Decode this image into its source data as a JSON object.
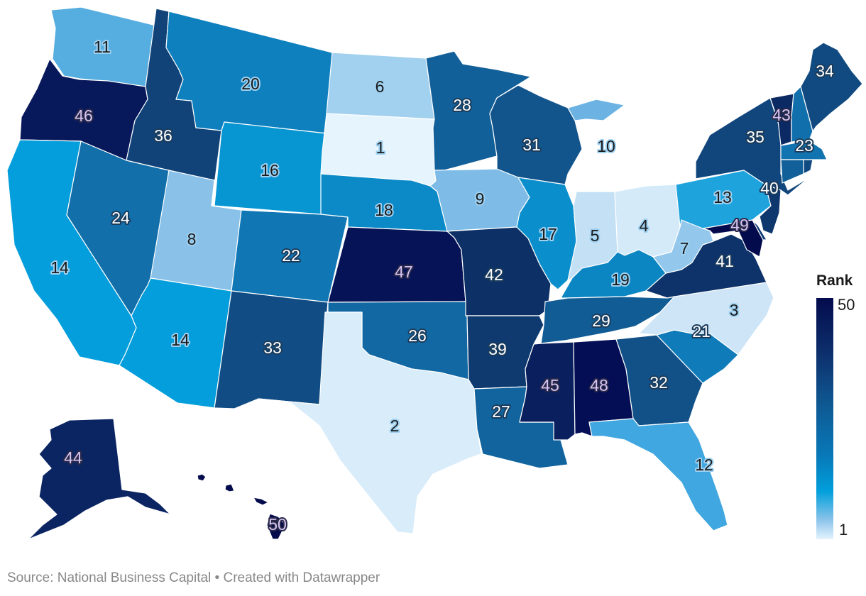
{
  "chart_data": {
    "type": "choropleth",
    "title": "",
    "legend": {
      "title": "Rank",
      "min_label": "1",
      "max_label": "50",
      "min": 1,
      "max": 50,
      "color_low": "#e4f3fd",
      "color_mid": "#009fdb",
      "color_high": "#030b4d",
      "position": "right"
    },
    "states": [
      {
        "code": "SD",
        "name": "South Dakota",
        "rank": 1
      },
      {
        "code": "TX",
        "name": "Texas",
        "rank": 2
      },
      {
        "code": "NC",
        "name": "North Carolina",
        "rank": 3
      },
      {
        "code": "OH",
        "name": "Ohio",
        "rank": 4
      },
      {
        "code": "IN",
        "name": "Indiana",
        "rank": 5
      },
      {
        "code": "ND",
        "name": "North Dakota",
        "rank": 6
      },
      {
        "code": "WV",
        "name": "West Virginia",
        "rank": 7
      },
      {
        "code": "UT",
        "name": "Utah",
        "rank": 8
      },
      {
        "code": "IA",
        "name": "Iowa",
        "rank": 9
      },
      {
        "code": "MI",
        "name": "Michigan",
        "rank": 10
      },
      {
        "code": "WA",
        "name": "Washington",
        "rank": 11
      },
      {
        "code": "FL",
        "name": "Florida",
        "rank": 12
      },
      {
        "code": "PA",
        "name": "Pennsylvania",
        "rank": 13
      },
      {
        "code": "CA",
        "name": "California",
        "rank": 14
      },
      {
        "code": "AZ",
        "name": "Arizona",
        "rank": 14
      },
      {
        "code": "WY",
        "name": "Wyoming",
        "rank": 16
      },
      {
        "code": "IL",
        "name": "Illinois",
        "rank": 17
      },
      {
        "code": "NE",
        "name": "Nebraska",
        "rank": 18
      },
      {
        "code": "KY",
        "name": "Kentucky",
        "rank": 19
      },
      {
        "code": "MT",
        "name": "Montana",
        "rank": 20
      },
      {
        "code": "SC",
        "name": "South Carolina",
        "rank": 21
      },
      {
        "code": "CO",
        "name": "Colorado",
        "rank": 22
      },
      {
        "code": "MA",
        "name": "Massachusetts",
        "rank": 23
      },
      {
        "code": "NV",
        "name": "Nevada",
        "rank": 24
      },
      {
        "code": "OK",
        "name": "Oklahoma",
        "rank": 26
      },
      {
        "code": "LA",
        "name": "Louisiana",
        "rank": 27
      },
      {
        "code": "MN",
        "name": "Minnesota",
        "rank": 28
      },
      {
        "code": "TN",
        "name": "Tennessee",
        "rank": 29
      },
      {
        "code": "WI",
        "name": "Wisconsin",
        "rank": 31
      },
      {
        "code": "GA",
        "name": "Georgia",
        "rank": 32
      },
      {
        "code": "NM",
        "name": "New Mexico",
        "rank": 33
      },
      {
        "code": "ME",
        "name": "Maine",
        "rank": 34
      },
      {
        "code": "NY",
        "name": "New York",
        "rank": 35
      },
      {
        "code": "ID",
        "name": "Idaho",
        "rank": 36
      },
      {
        "code": "AR",
        "name": "Arkansas",
        "rank": 39
      },
      {
        "code": "NJ",
        "name": "New Jersey",
        "rank": 40
      },
      {
        "code": "VA",
        "name": "Virginia",
        "rank": 41
      },
      {
        "code": "MO",
        "name": "Missouri",
        "rank": 42
      },
      {
        "code": "VT",
        "name": "Vermont",
        "rank": 43
      },
      {
        "code": "AK",
        "name": "Alaska",
        "rank": 44
      },
      {
        "code": "MS",
        "name": "Mississippi",
        "rank": 45
      },
      {
        "code": "OR",
        "name": "Oregon",
        "rank": 46
      },
      {
        "code": "KS",
        "name": "Kansas",
        "rank": 47
      },
      {
        "code": "AL",
        "name": "Alabama",
        "rank": 48
      },
      {
        "code": "MD",
        "name": "Maryland",
        "rank": 49
      },
      {
        "code": "HI",
        "name": "Hawaii",
        "rank": 50
      },
      {
        "code": "NH",
        "name": "New Hampshire",
        "rank": null
      },
      {
        "code": "CT",
        "name": "Connecticut",
        "rank": null
      },
      {
        "code": "RI",
        "name": "Rhode Island",
        "rank": null
      },
      {
        "code": "DE",
        "name": "Delaware",
        "rank": null
      }
    ]
  },
  "legend": {
    "title": "Rank",
    "max_label": "50",
    "min_label": "1"
  },
  "footer": {
    "source": "Source: National Business Capital • Created with Datawrapper"
  },
  "fills": {
    "SD": "#e6f4fd",
    "TX": "#d8ecfa",
    "NC": "#cde5f7",
    "OH": "#d4eaf9",
    "IN": "#c3e0f5",
    "ND": "#a2d0ef",
    "WV": "#93c8ec",
    "UT": "#89c1e9",
    "IA": "#7ebce7",
    "MI": "#6cb3e4",
    "WA": "#56ade0",
    "FL": "#40a7e0",
    "PA": "#1ea3dd",
    "CA": "#039edb",
    "AZ": "#039edb",
    "WY": "#0896d3",
    "IL": "#0b8fcc",
    "NE": "#0b8ac7",
    "KY": "#0c86c3",
    "MT": "#0e80be",
    "SC": "#0f7bb9",
    "CO": "#1077b4",
    "MA": "#1173af",
    "NV": "#126faa",
    "OK": "#1168a2",
    "LA": "#11649d",
    "MN": "#126099",
    "TN": "#125c95",
    "WI": "#12548c",
    "GA": "#125088",
    "NM": "#114d84",
    "ME": "#114a80",
    "NY": "#11467c",
    "ID": "#114379",
    "AR": "#0f3a70",
    "NJ": "#0e376d",
    "VA": "#0d336a",
    "MO": "#0d3067",
    "VT": "#0b2a63",
    "AK": "#0b2562",
    "MS": "#0a1f5e",
    "OR": "#08195b",
    "KS": "#061457",
    "AL": "#040e54",
    "MD": "#030b4d",
    "HI": "#030b4d",
    "NH": "#1170ab",
    "CT": "#11609a",
    "RI": "#114a80",
    "DE": "#0d3a74"
  }
}
